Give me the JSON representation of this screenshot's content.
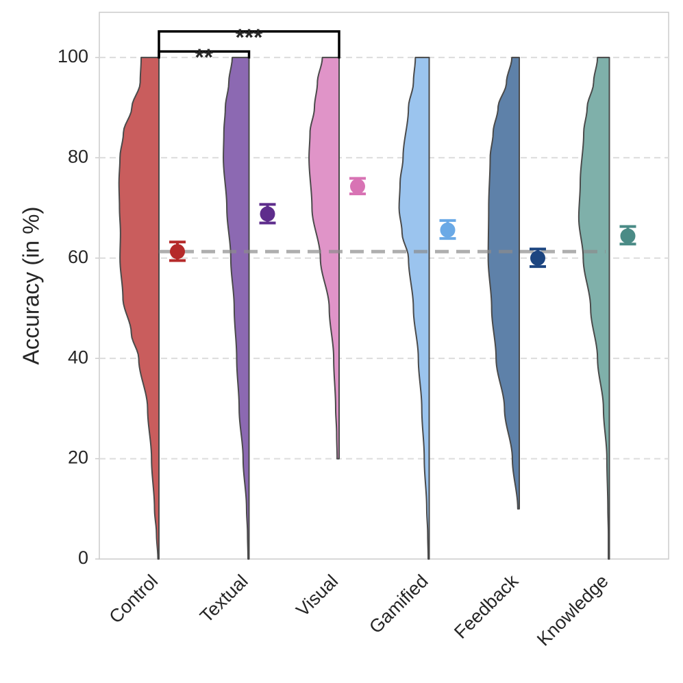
{
  "chart_data": {
    "type": "violin",
    "title": "",
    "xlabel": "",
    "ylabel": "Accuracy (in %)",
    "ylim": [
      0,
      109
    ],
    "yticks": [
      0,
      20,
      40,
      60,
      80,
      100
    ],
    "grid": "horizontal-dashed",
    "reference_line": 61.3,
    "categories": [
      "Control",
      "Textual",
      "Visual",
      "Gamified",
      "Feedback",
      "Knowledge"
    ],
    "violin_color": [
      "#c95d5d",
      "#8c69b2",
      "#e094c8",
      "#9bc4ee",
      "#5e81a9",
      "#7fb0aa"
    ],
    "point_color": [
      "#b52a2a",
      "#5e2d8c",
      "#d873b4",
      "#6aa9e6",
      "#1c4580",
      "#4a8b86"
    ],
    "means": [
      61.3,
      68.8,
      74.3,
      65.6,
      60.0,
      64.4
    ],
    "ci_low": [
      59.5,
      67.0,
      72.8,
      63.9,
      58.3,
      62.8
    ],
    "ci_high": [
      63.2,
      70.7,
      75.9,
      67.5,
      61.8,
      66.3
    ],
    "densities": [
      {
        "min": 0,
        "max": 100,
        "profile": [
          [
            0,
            0.02
          ],
          [
            5,
            0.05
          ],
          [
            10,
            0.09
          ],
          [
            20,
            0.15
          ],
          [
            30,
            0.23
          ],
          [
            40,
            0.41
          ],
          [
            45,
            0.56
          ],
          [
            52,
            0.73
          ],
          [
            60,
            0.79
          ],
          [
            65,
            0.78
          ],
          [
            70,
            0.8
          ],
          [
            75,
            0.81
          ],
          [
            80,
            0.79
          ],
          [
            85,
            0.72
          ],
          [
            90,
            0.55
          ],
          [
            95,
            0.38
          ],
          [
            100,
            0.36
          ]
        ]
      },
      {
        "min": 0,
        "max": 100,
        "profile": [
          [
            0,
            0.02
          ],
          [
            5,
            0.03
          ],
          [
            10,
            0.05
          ],
          [
            20,
            0.12
          ],
          [
            30,
            0.2
          ],
          [
            40,
            0.25
          ],
          [
            50,
            0.3
          ],
          [
            60,
            0.37
          ],
          [
            70,
            0.45
          ],
          [
            80,
            0.52
          ],
          [
            85,
            0.51
          ],
          [
            90,
            0.48
          ],
          [
            95,
            0.41
          ],
          [
            100,
            0.34
          ]
        ]
      },
      {
        "min": 20,
        "max": 100,
        "profile": [
          [
            20,
            0.04
          ],
          [
            25,
            0.05
          ],
          [
            30,
            0.07
          ],
          [
            40,
            0.11
          ],
          [
            50,
            0.2
          ],
          [
            60,
            0.38
          ],
          [
            70,
            0.55
          ],
          [
            80,
            0.61
          ],
          [
            85,
            0.59
          ],
          [
            90,
            0.5
          ],
          [
            95,
            0.44
          ],
          [
            100,
            0.34
          ]
        ]
      },
      {
        "min": 0,
        "max": 100,
        "profile": [
          [
            0,
            0.02
          ],
          [
            5,
            0.03
          ],
          [
            10,
            0.05
          ],
          [
            20,
            0.1
          ],
          [
            30,
            0.15
          ],
          [
            40,
            0.22
          ],
          [
            50,
            0.32
          ],
          [
            60,
            0.42
          ],
          [
            65,
            0.55
          ],
          [
            70,
            0.61
          ],
          [
            75,
            0.59
          ],
          [
            80,
            0.53
          ],
          [
            90,
            0.42
          ],
          [
            95,
            0.32
          ],
          [
            100,
            0.28
          ]
        ]
      },
      {
        "min": 10,
        "max": 100,
        "profile": [
          [
            10,
            0.03
          ],
          [
            20,
            0.14
          ],
          [
            30,
            0.3
          ],
          [
            40,
            0.47
          ],
          [
            50,
            0.56
          ],
          [
            60,
            0.63
          ],
          [
            70,
            0.62
          ],
          [
            80,
            0.59
          ],
          [
            85,
            0.53
          ],
          [
            90,
            0.43
          ],
          [
            95,
            0.26
          ],
          [
            100,
            0.15
          ]
        ]
      },
      {
        "min": 0,
        "max": 100,
        "profile": [
          [
            0,
            0.02
          ],
          [
            5,
            0.02
          ],
          [
            10,
            0.03
          ],
          [
            20,
            0.05
          ],
          [
            30,
            0.12
          ],
          [
            40,
            0.24
          ],
          [
            50,
            0.38
          ],
          [
            60,
            0.53
          ],
          [
            68,
            0.62
          ],
          [
            75,
            0.59
          ],
          [
            85,
            0.52
          ],
          [
            90,
            0.45
          ],
          [
            95,
            0.32
          ],
          [
            100,
            0.24
          ]
        ]
      }
    ],
    "significance": [
      {
        "from": "Control",
        "to": "Textual",
        "label": "**"
      },
      {
        "from": "Control",
        "to": "Visual",
        "label": "***"
      }
    ]
  }
}
